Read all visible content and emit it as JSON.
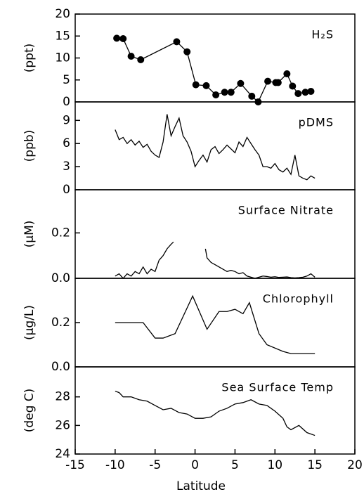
{
  "chart_data": [
    {
      "type": "line",
      "markers": true,
      "annotation": "H₂S",
      "ylabel": "(ppt)",
      "color": "#000000",
      "x": [
        -9.8,
        -9.0,
        -8.0,
        -6.8,
        -2.3,
        -1.0,
        0.1,
        1.4,
        2.6,
        3.7,
        4.5,
        5.7,
        7.1,
        7.9,
        9.1,
        10.1,
        10.4,
        11.5,
        12.2,
        12.9,
        13.8,
        14.5
      ],
      "values": [
        14.5,
        14.4,
        10.4,
        9.6,
        13.7,
        11.4,
        3.9,
        3.7,
        1.6,
        2.2,
        2.2,
        4.2,
        1.3,
        0,
        4.7,
        4.4,
        4.4,
        6.4,
        3.6,
        1.9,
        2.2,
        2.4
      ],
      "xlim": [
        -15,
        20
      ],
      "ylim": [
        0,
        20
      ],
      "yticks": [
        0,
        5,
        10,
        15,
        20
      ]
    },
    {
      "type": "line",
      "annotation": "pDMS",
      "ylabel": "(ppb)",
      "color": "#000000",
      "x": [
        -10,
        -9.5,
        -9,
        -8.5,
        -8,
        -7.5,
        -7,
        -6.5,
        -6,
        -5.5,
        -5,
        -4.5,
        -4,
        -3.5,
        -3,
        -2.5,
        -2,
        -1.5,
        -1,
        -0.5,
        0,
        0.5,
        1,
        1.5,
        2,
        2.5,
        3,
        3.5,
        4,
        4.5,
        5,
        5.5,
        6,
        6.5,
        7,
        7.5,
        8,
        8.5,
        9,
        9.5,
        10,
        10.5,
        11,
        11.5,
        12,
        12.5,
        13,
        13.5,
        14,
        14.5,
        15
      ],
      "values": [
        7.8,
        6.5,
        6.8,
        6.0,
        6.5,
        5.8,
        6.3,
        5.5,
        5.9,
        5.0,
        4.5,
        4.2,
        6.2,
        9.8,
        7.0,
        8.2,
        9.3,
        7.0,
        6.2,
        5.0,
        3.0,
        3.8,
        4.5,
        3.6,
        5.2,
        5.6,
        4.7,
        5.2,
        5.8,
        5.3,
        4.8,
        6.2,
        5.6,
        6.8,
        6.0,
        5.2,
        4.5,
        3.0,
        3.0,
        2.8,
        3.4,
        2.6,
        2.3,
        2.8,
        2.0,
        4.5,
        1.8,
        1.5,
        1.3,
        1.8,
        1.5
      ],
      "xlim": [
        -15,
        20
      ],
      "ylim": [
        0,
        11.4
      ],
      "yticks": [
        0,
        3,
        6,
        9
      ]
    },
    {
      "type": "line",
      "annotation": "Surface Nitrate",
      "ylabel": "(μM)",
      "color": "#000000",
      "x": [
        -10,
        -9.5,
        -9,
        -8.5,
        -8,
        -7.5,
        -7,
        -6.5,
        -6,
        -5.5,
        -5,
        -4.5,
        -4,
        -3.5,
        -3,
        -2.7,
        -1,
        1.3,
        1.5,
        2,
        2.5,
        3,
        3.5,
        4,
        4.5,
        5,
        5.5,
        6,
        6.5,
        7,
        7.5,
        8,
        8.5,
        9,
        9.5,
        10,
        10.5,
        11,
        11.5,
        12,
        12.5,
        13,
        13.5,
        14,
        14.5,
        15
      ],
      "values": [
        0.01,
        0.02,
        0.0,
        0.02,
        0.01,
        0.03,
        0.02,
        0.05,
        0.02,
        0.04,
        0.03,
        0.08,
        0.1,
        0.13,
        0.15,
        0.16,
        null,
        0.13,
        0.09,
        0.07,
        0.06,
        0.05,
        0.04,
        0.03,
        0.035,
        0.03,
        0.02,
        0.025,
        0.01,
        0.005,
        0.0,
        0.005,
        0.01,
        0.008,
        0.005,
        0.007,
        0.004,
        0.005,
        0.006,
        0.003,
        0.002,
        0.003,
        0.005,
        0.01,
        0.02,
        0.005
      ],
      "xlim": [
        -15,
        20
      ],
      "ylim": [
        0,
        0.39
      ],
      "yticks": [
        {
          "value": 0,
          "label": "0.0"
        },
        {
          "value": 0.2,
          "label": "0.2"
        }
      ]
    },
    {
      "type": "line",
      "annotation": "Chlorophyll",
      "ylabel": "(μg/L)",
      "color": "#000000",
      "x": [
        -10,
        -6.5,
        -5,
        -4,
        -2.5,
        -0.3,
        1.5,
        3,
        4,
        5,
        6,
        6.8,
        8,
        9,
        11,
        12,
        15
      ],
      "values": [
        0.2,
        0.2,
        0.13,
        0.13,
        0.15,
        0.32,
        0.17,
        0.25,
        0.25,
        0.26,
        0.24,
        0.29,
        0.15,
        0.1,
        0.07,
        0.06,
        0.06
      ],
      "xlim": [
        -15,
        20
      ],
      "ylim": [
        0,
        0.4
      ],
      "yticks": [
        {
          "value": 0,
          "label": "0.0"
        },
        {
          "value": 0.2,
          "label": "0.2"
        }
      ]
    },
    {
      "type": "line",
      "annotation": "Sea Surface Temp",
      "ylabel": "(deg C)",
      "xlabel": "Latitude",
      "color": "#000000",
      "x": [
        -10,
        -9.5,
        -9,
        -8,
        -7,
        -6,
        -5,
        -4,
        -3,
        -2,
        -1,
        0,
        1,
        2,
        3,
        4,
        5,
        6,
        7,
        8,
        9,
        10,
        11,
        11.5,
        12,
        13,
        14,
        15
      ],
      "values": [
        28.4,
        28.3,
        28.0,
        28.0,
        27.8,
        27.7,
        27.4,
        27.1,
        27.2,
        26.9,
        26.8,
        26.5,
        26.5,
        26.6,
        27.0,
        27.2,
        27.5,
        27.6,
        27.8,
        27.5,
        27.4,
        27.0,
        26.5,
        25.9,
        25.7,
        26.0,
        25.5,
        25.3
      ],
      "xlim": [
        -15,
        20
      ],
      "ylim": [
        24,
        30.1
      ],
      "yticks": [
        24,
        26,
        28
      ],
      "xticks": [
        -15,
        -10,
        -5,
        0,
        5,
        10,
        15,
        20
      ]
    }
  ]
}
